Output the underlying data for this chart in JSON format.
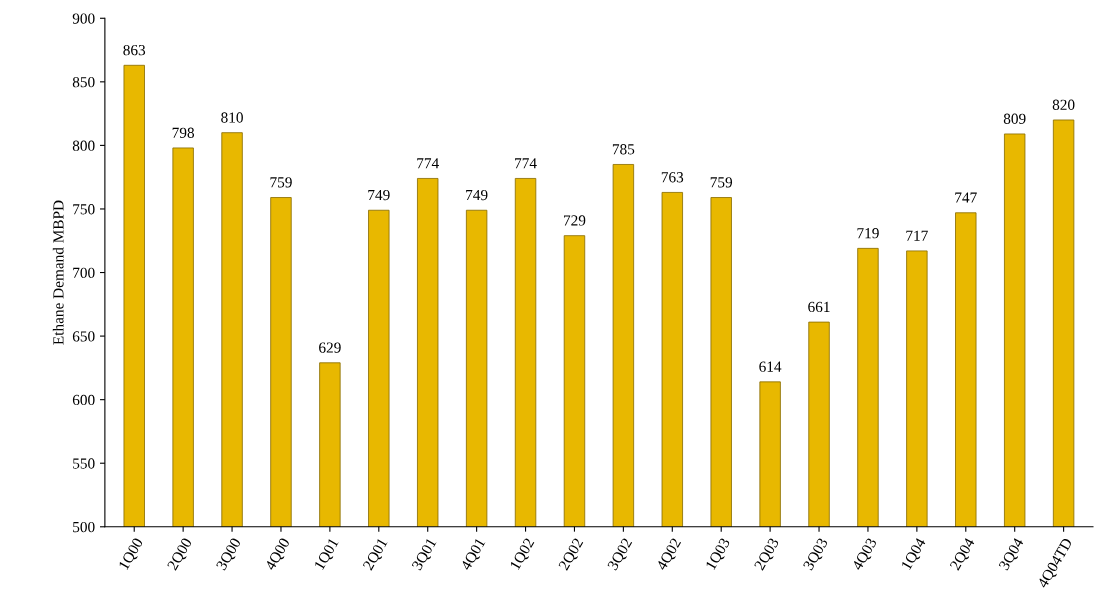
{
  "chart_data": {
    "type": "bar",
    "ylabel": "Ethane Demand MBPD",
    "categories": [
      "1Q00",
      "2Q00",
      "3Q00",
      "4Q00",
      "1Q01",
      "2Q01",
      "3Q01",
      "4Q01",
      "1Q02",
      "2Q02",
      "3Q02",
      "4Q02",
      "1Q03",
      "2Q03",
      "3Q03",
      "4Q03",
      "1Q04",
      "2Q04",
      "3Q04",
      "4Q04TD"
    ],
    "values": [
      863,
      798,
      810,
      759,
      629,
      749,
      774,
      749,
      774,
      729,
      785,
      763,
      759,
      614,
      661,
      719,
      717,
      747,
      809,
      820
    ],
    "color": "#e8b800",
    "ylim": [
      500,
      900
    ],
    "yticks": [
      500,
      550,
      600,
      650,
      700,
      750,
      800,
      850,
      900
    ],
    "data_labels": true,
    "grid": false
  }
}
